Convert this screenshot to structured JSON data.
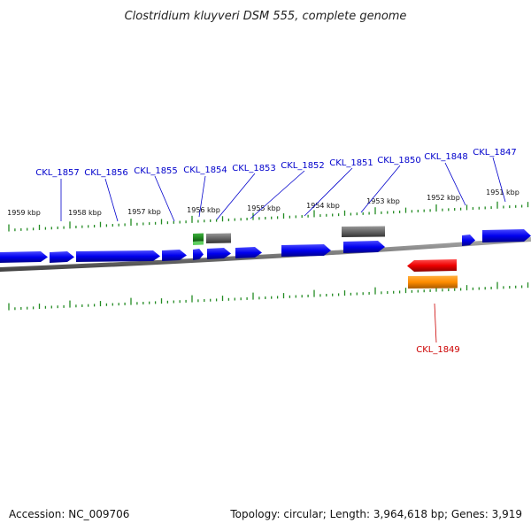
{
  "title": "Clostridium kluyveri DSM 555, complete genome",
  "footer": {
    "accession": "Accession: NC_009706",
    "topology": "Topology: circular; Length: 3,964,618 bp; Genes: 3,919"
  },
  "ticks": [
    "1959 kbp",
    "1958 kbp",
    "1957 kbp",
    "1956 kbp",
    "1955 kbp",
    "1954 kbp",
    "1953 kbp",
    "1952 kbp",
    "1951 kbp"
  ],
  "top_labels": [
    "CKL_1857",
    "CKL_1856",
    "CKL_1855",
    "CKL_1854",
    "CKL_1853",
    "CKL_1852",
    "CKL_1851",
    "CKL_1850",
    "CKL_1848",
    "CKL_1847"
  ],
  "bottom_labels": [
    "CKL_1849"
  ],
  "colors": {
    "forward_gene": "#0000ee",
    "reverse_gene": "#ee0000",
    "orange_feature": "#ff8c00",
    "green_feature": "#228b22",
    "grey_feature": "#666666",
    "backbone": "#808080",
    "tick": "#228b22",
    "top_label": "#0000cc",
    "bottom_label": "#cc0000"
  }
}
